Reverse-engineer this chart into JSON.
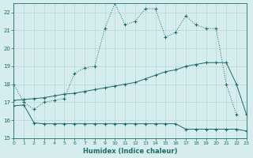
{
  "xlabel": "Humidex (Indice chaleur)",
  "bg_color": "#d5eeed",
  "grid_color": "#b8d8d8",
  "line_color": "#1a6b6b",
  "xlim": [
    0,
    23
  ],
  "ylim": [
    15,
    22.5
  ],
  "yticks": [
    15,
    16,
    17,
    18,
    19,
    20,
    21,
    22
  ],
  "xticks": [
    0,
    1,
    2,
    3,
    4,
    5,
    6,
    7,
    8,
    9,
    10,
    11,
    12,
    13,
    14,
    15,
    16,
    17,
    18,
    19,
    20,
    21,
    22,
    23
  ],
  "line1_x": [
    0,
    1,
    2,
    3,
    4,
    5,
    6,
    7,
    8,
    9,
    10,
    11,
    12,
    13,
    14,
    15,
    16,
    17,
    18,
    19,
    20,
    21,
    22
  ],
  "line1_y": [
    18.0,
    17.0,
    16.6,
    17.0,
    17.1,
    17.2,
    18.6,
    18.9,
    19.0,
    21.1,
    22.5,
    21.3,
    21.5,
    22.2,
    22.2,
    20.6,
    20.9,
    21.8,
    21.3,
    21.1,
    21.1,
    18.0,
    16.3
  ],
  "line1_dotted": true,
  "line2_x": [
    0,
    1,
    2,
    3,
    4,
    5,
    6,
    7,
    8,
    9,
    10,
    11,
    12,
    13,
    14,
    15,
    16,
    17,
    18,
    19,
    20,
    21,
    22,
    23
  ],
  "line2_y": [
    17.1,
    17.15,
    17.2,
    17.25,
    17.35,
    17.45,
    17.5,
    17.6,
    17.7,
    17.8,
    17.9,
    18.0,
    18.1,
    18.3,
    18.5,
    18.7,
    18.8,
    19.0,
    19.1,
    19.2,
    19.2,
    19.2,
    18.0,
    16.3
  ],
  "line2_dotted": false,
  "line3_x": [
    0,
    1,
    2,
    3,
    4,
    5,
    6,
    7,
    8,
    9,
    10,
    11,
    12,
    13,
    14,
    15,
    16,
    17,
    18,
    19,
    20,
    21,
    22,
    23
  ],
  "line3_y": [
    16.8,
    16.85,
    15.85,
    15.8,
    15.8,
    15.8,
    15.8,
    15.8,
    15.8,
    15.8,
    15.8,
    15.8,
    15.8,
    15.8,
    15.8,
    15.8,
    15.8,
    15.5,
    15.5,
    15.5,
    15.5,
    15.5,
    15.5,
    15.4
  ],
  "line3_dotted": false
}
